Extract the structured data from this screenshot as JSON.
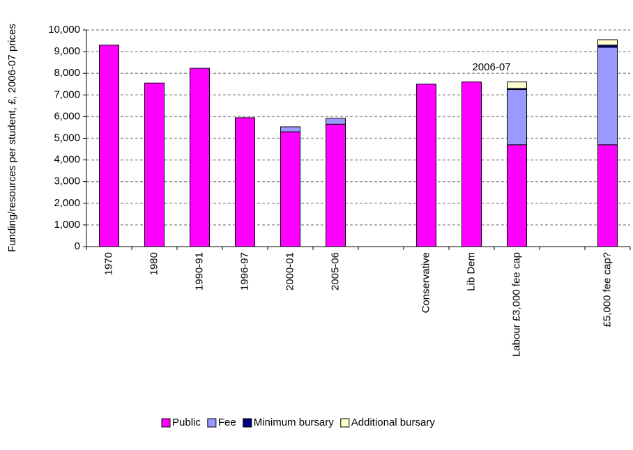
{
  "chart_data": {
    "type": "stacked_bar",
    "y_label": "Funding/resources per student, £, 2006-07 prices",
    "annotation": "2006-07",
    "categories": [
      "1970",
      "1980",
      "1990-91",
      "1996-97",
      "2000-01",
      "2005-06",
      null,
      "Conservative",
      "Lib Dem",
      "Labour £3,000 fee cap",
      null,
      "£5,000 fee cap?"
    ],
    "series": [
      {
        "name": "Public",
        "color": "#ff00ff",
        "values": [
          9300,
          7550,
          8230,
          5950,
          5300,
          5650,
          null,
          7500,
          7600,
          4700,
          null,
          4700
        ]
      },
      {
        "name": "Fee",
        "color": "#9999ff",
        "values": [
          0,
          0,
          0,
          0,
          230,
          270,
          null,
          0,
          0,
          2550,
          null,
          4500
        ]
      },
      {
        "name": "Minimum bursary",
        "color": "#000080",
        "values": [
          0,
          0,
          0,
          0,
          0,
          0,
          null,
          0,
          0,
          50,
          null,
          100
        ]
      },
      {
        "name": "Additional bursary",
        "color": "#ffffcc",
        "values": [
          0,
          0,
          0,
          0,
          0,
          0,
          null,
          0,
          0,
          300,
          null,
          250
        ]
      }
    ],
    "ylim": [
      0,
      10000
    ],
    "yticks": [
      0,
      {
        "value": 1000,
        "label": "1,000"
      },
      {
        "value": 2000,
        "label": "2,000"
      },
      {
        "value": 3000,
        "label": "3,000"
      },
      {
        "value": 4000,
        "label": "4,000"
      },
      {
        "value": 5000,
        "label": "5,000"
      },
      {
        "value": 6000,
        "label": "6,000"
      },
      {
        "value": 7000,
        "label": "7,000"
      },
      {
        "value": 8000,
        "label": "8,000"
      },
      {
        "value": 9000,
        "label": "9,000"
      },
      {
        "value": 10000,
        "label": "10,000"
      }
    ],
    "grid": true,
    "legend": "bottom"
  }
}
